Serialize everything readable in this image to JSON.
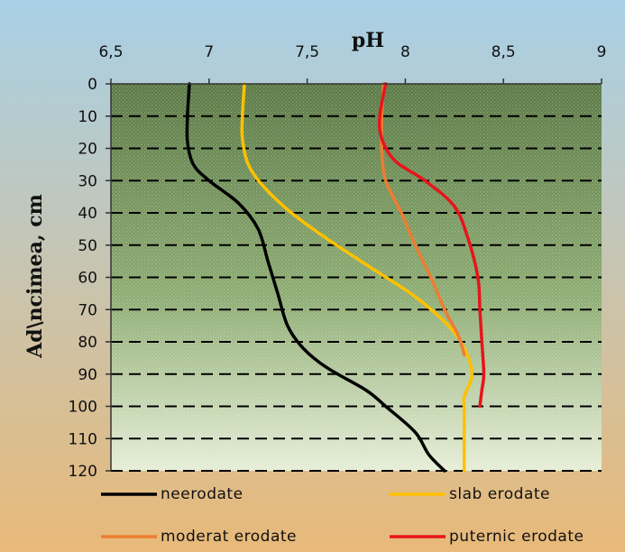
{
  "chart_data": {
    "type": "line",
    "title": "",
    "xlabel": "pH",
    "ylabel": "Ad\\ncimea, cm",
    "xlim": [
      6.5,
      9
    ],
    "ylim": [
      0,
      120
    ],
    "y_reversed": true,
    "x_ticks": [
      "6,5",
      "7",
      "7,5",
      "8",
      "8,5",
      "9"
    ],
    "y_ticks": [
      "0",
      "10",
      "20",
      "30",
      "40",
      "50",
      "60",
      "70",
      "80",
      "90",
      "100",
      "110",
      "120"
    ],
    "grid": "horizontal dashed",
    "legend_position": "bottom",
    "series": [
      {
        "name": "neerodate",
        "color": "#000000",
        "points": [
          [
            6.9,
            0
          ],
          [
            6.89,
            10
          ],
          [
            6.89,
            18
          ],
          [
            6.92,
            25
          ],
          [
            7.0,
            30
          ],
          [
            7.15,
            37
          ],
          [
            7.25,
            45
          ],
          [
            7.3,
            55
          ],
          [
            7.35,
            65
          ],
          [
            7.4,
            75
          ],
          [
            7.48,
            82
          ],
          [
            7.6,
            88
          ],
          [
            7.8,
            95
          ],
          [
            7.9,
            100
          ],
          [
            8.05,
            108
          ],
          [
            8.12,
            115
          ],
          [
            8.2,
            120
          ]
        ]
      },
      {
        "name": "slab erodate",
        "color": "#FFC000",
        "points": [
          [
            7.18,
            0
          ],
          [
            7.17,
            10
          ],
          [
            7.17,
            17
          ],
          [
            7.2,
            25
          ],
          [
            7.28,
            32
          ],
          [
            7.42,
            40
          ],
          [
            7.6,
            48
          ],
          [
            7.85,
            58
          ],
          [
            8.05,
            66
          ],
          [
            8.22,
            75
          ],
          [
            8.3,
            82
          ],
          [
            8.34,
            90
          ],
          [
            8.3,
            97
          ],
          [
            8.3,
            100
          ],
          [
            8.3,
            110
          ],
          [
            8.3,
            120
          ]
        ]
      },
      {
        "name": "moderat erodate",
        "color": "#ED7D31",
        "points": [
          [
            7.89,
            0
          ],
          [
            7.88,
            10
          ],
          [
            7.88,
            20
          ],
          [
            7.9,
            30
          ],
          [
            7.98,
            40
          ],
          [
            8.05,
            50
          ],
          [
            8.13,
            60
          ],
          [
            8.2,
            70
          ],
          [
            8.27,
            78
          ],
          [
            8.3,
            84
          ]
        ]
      },
      {
        "name": "puternic erodate",
        "color": "#E8141B",
        "points": [
          [
            7.9,
            0
          ],
          [
            7.87,
            10
          ],
          [
            7.88,
            17
          ],
          [
            7.95,
            24
          ],
          [
            8.1,
            30
          ],
          [
            8.25,
            38
          ],
          [
            8.32,
            48
          ],
          [
            8.37,
            60
          ],
          [
            8.38,
            70
          ],
          [
            8.39,
            80
          ],
          [
            8.4,
            90
          ],
          [
            8.39,
            95
          ],
          [
            8.38,
            100
          ]
        ]
      }
    ]
  },
  "colors": {
    "frame_top": "#A8D0E6",
    "frame_bottom": "#E8B979",
    "plot_top": "#5C7A46",
    "plot_mid": "#8EAD74",
    "plot_bottom": "#E6EED7"
  }
}
